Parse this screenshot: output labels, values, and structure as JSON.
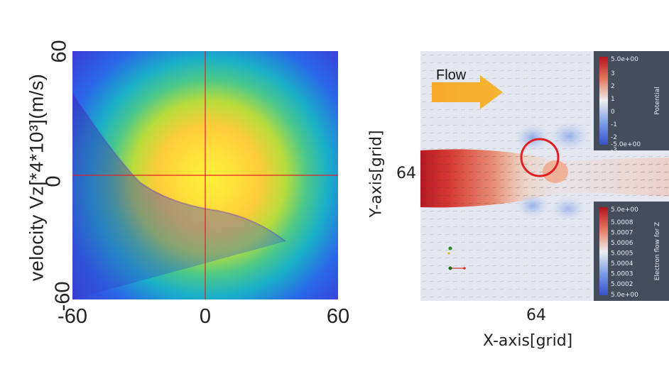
{
  "chart_data": [
    {
      "type": "heatmap",
      "title": "",
      "xlabel": "",
      "ylabel": "velocity Vz[*4*10³](m/s)",
      "xlim": [
        -60,
        60
      ],
      "ylim": [
        -60,
        60
      ],
      "x_ticks": [
        "-60",
        "0",
        "60"
      ],
      "y_ticks": [
        "-60",
        "0",
        "60"
      ],
      "peak": {
        "x": 0,
        "y": 0
      },
      "crosshair": {
        "x": 0,
        "y": 0
      },
      "colormap": [
        "#3e1fa0",
        "#2a66e8",
        "#1ab0c8",
        "#4cc88a",
        "#b8dc3c",
        "#ffe23a",
        "#fff238"
      ]
    },
    {
      "type": "heatmap",
      "title": "",
      "xlabel": "X-axis[grid]",
      "ylabel": "Y-axis[grid]",
      "x_ticks": [
        "64"
      ],
      "y_ticks": [
        "64"
      ],
      "annotation": "Flow",
      "colorbars": [
        {
          "name": "Potential",
          "max_label": "5.0e+00",
          "min_label": "-5.0e+00",
          "ticks": [
            "3",
            "2",
            "1",
            "0",
            "-1",
            "-2",
            "-3"
          ]
        },
        {
          "name": "Electron flow for Z",
          "max_label": "5.0e+00",
          "min_label": "5.0e+00",
          "ticks": [
            "5.0008",
            "5.0007",
            "5.0006",
            "5.0005",
            "5.0004",
            "5.0003",
            "5.0002"
          ]
        }
      ]
    }
  ]
}
